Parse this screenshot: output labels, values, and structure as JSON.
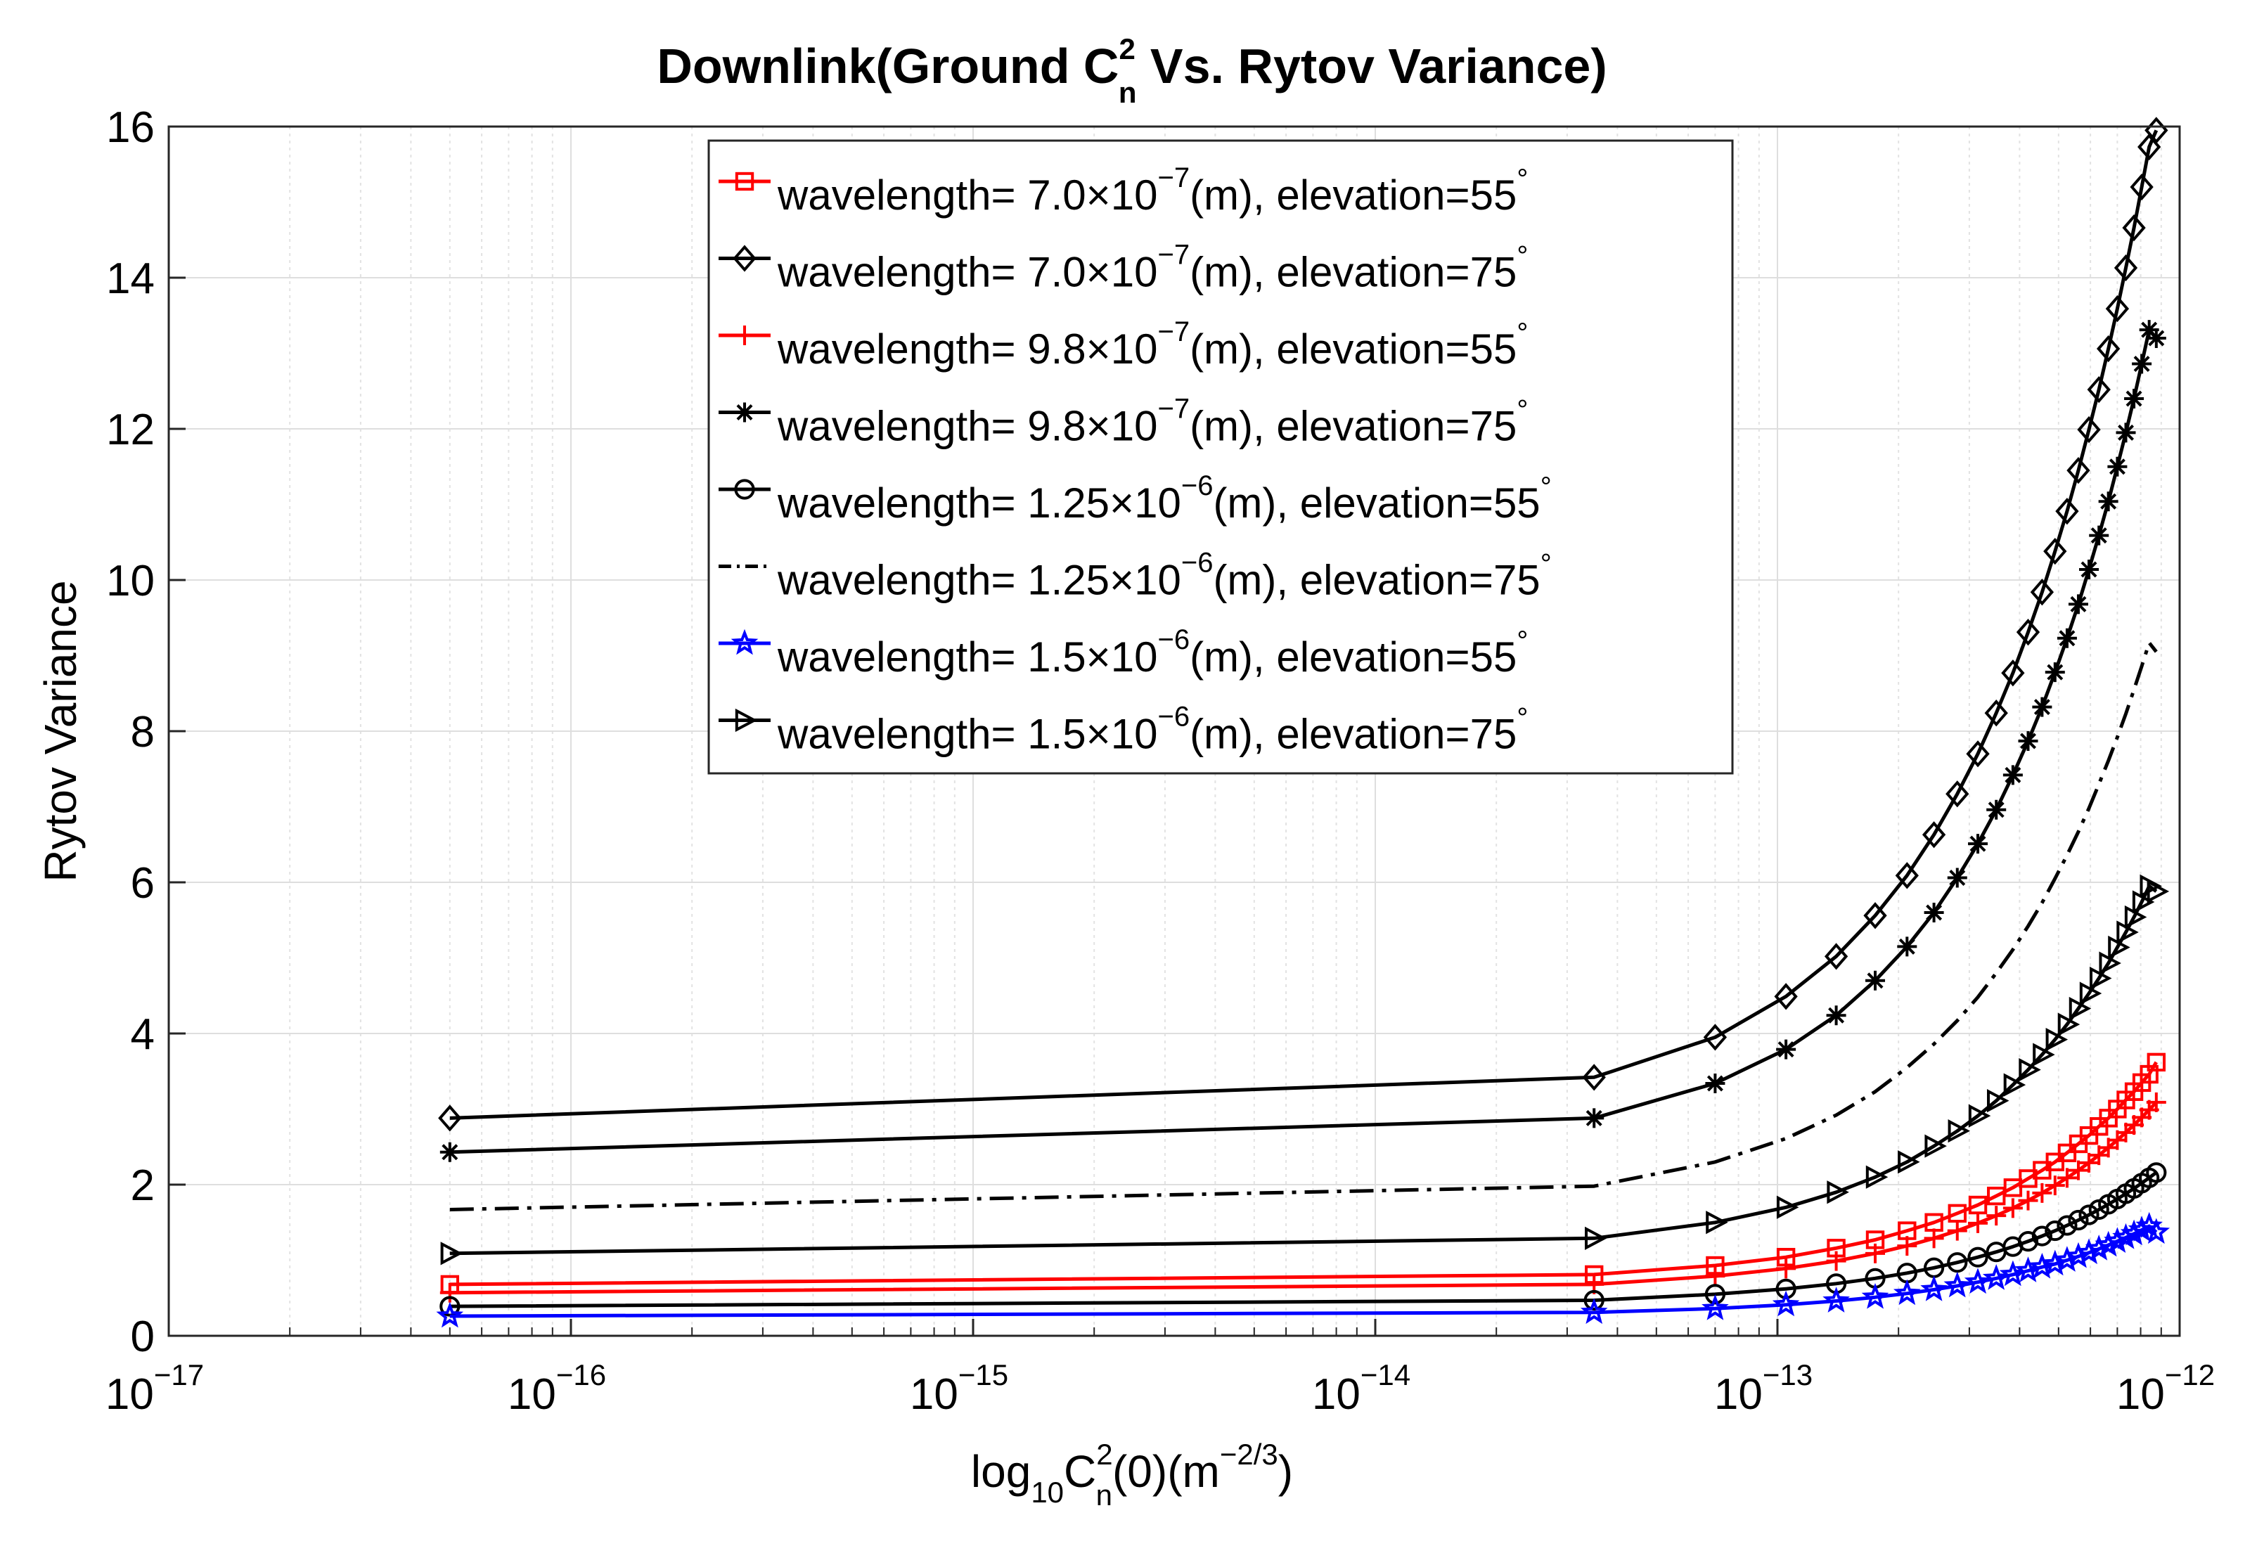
{
  "chart_data": {
    "type": "line",
    "title": {
      "pre": "Downlink(Ground C",
      "sup": "2",
      "sub": "n",
      "post": " Vs. Rytov Variance)"
    },
    "ylabel": "Rytov Variance",
    "xlabel": {
      "p1": "log",
      "s1": "10",
      "p2": "C",
      "sup2": "2",
      "sub2": "n",
      "p3": "(0)(m",
      "sup3": "−2/3",
      "p4": ")"
    },
    "x_scale": "log",
    "xlim": [
      1e-17,
      1e-12
    ],
    "ylim": [
      0,
      16
    ],
    "x_ticks": [
      {
        "base": "10",
        "exp": "−17"
      },
      {
        "base": "10",
        "exp": "−16"
      },
      {
        "base": "10",
        "exp": "−15"
      },
      {
        "base": "10",
        "exp": "−14"
      },
      {
        "base": "10",
        "exp": "−13"
      },
      {
        "base": "10",
        "exp": "−12"
      }
    ],
    "y_ticks": [
      "0",
      "2",
      "4",
      "6",
      "8",
      "10",
      "12",
      "14",
      "16"
    ],
    "grid": true,
    "legend_position": "top-center",
    "x": [
      5e-17,
      3.5e-14,
      7e-14,
      1.05e-13,
      1.4e-13,
      1.75e-13,
      2.1e-13,
      2.45e-13,
      2.8e-13,
      3.15e-13,
      3.5e-13,
      3.85e-13,
      4.2e-13,
      4.55e-13,
      4.9e-13,
      5.25e-13,
      5.6e-13,
      5.95e-13,
      6.3e-13,
      6.65e-13,
      7e-13,
      7.35e-13,
      7.7e-13,
      8.05e-13,
      8.4e-13,
      8.75e-13
    ],
    "series": [
      {
        "name": {
          "pre": "wavelength= 7.0",
          "times": "×",
          "ten": "10",
          "exp": "−7",
          "mid": "(m), elevation=",
          "elev": "55",
          "deg": "°"
        },
        "color": "#ff0000",
        "marker": "square",
        "dash": "",
        "values": [
          0.68,
          0.81,
          0.93,
          1.04,
          1.16,
          1.27,
          1.39,
          1.5,
          1.62,
          1.73,
          1.85,
          1.96,
          2.08,
          2.19,
          2.3,
          2.42,
          2.54,
          2.65,
          2.77,
          2.88,
          3.0,
          3.12,
          3.23,
          3.35,
          3.46,
          3.62
        ]
      },
      {
        "name": {
          "pre": "wavelength= 7.0",
          "times": "×",
          "ten": "10",
          "exp": "−7",
          "mid": "(m), elevation=",
          "elev": "75",
          "deg": "°"
        },
        "color": "#000000",
        "marker": "diamond",
        "dash": "",
        "values": [
          2.88,
          3.42,
          3.95,
          4.49,
          5.02,
          5.56,
          6.09,
          6.63,
          7.17,
          7.7,
          8.24,
          8.77,
          9.31,
          9.84,
          10.38,
          10.91,
          11.45,
          11.99,
          12.52,
          13.06,
          13.59,
          14.13,
          14.66,
          15.2,
          15.73,
          15.95
        ]
      },
      {
        "name": {
          "pre": "wavelength= 9.8",
          "times": "×",
          "ten": "10",
          "exp": "−7",
          "mid": "(m), elevation=",
          "elev": "55",
          "deg": "°"
        },
        "color": "#ff0000",
        "marker": "plus",
        "dash": "",
        "values": [
          0.57,
          0.68,
          0.79,
          0.89,
          0.99,
          1.09,
          1.19,
          1.29,
          1.39,
          1.49,
          1.59,
          1.69,
          1.79,
          1.89,
          1.99,
          2.09,
          2.19,
          2.29,
          2.39,
          2.49,
          2.59,
          2.69,
          2.79,
          2.89,
          2.99,
          3.09
        ]
      },
      {
        "name": {
          "pre": "wavelength= 9.8",
          "times": "×",
          "ten": "10",
          "exp": "−7",
          "mid": "(m), elevation=",
          "elev": "75",
          "deg": "°"
        },
        "color": "#000000",
        "marker": "asterisk",
        "dash": "",
        "values": [
          2.43,
          2.88,
          3.34,
          3.79,
          4.24,
          4.7,
          5.15,
          5.6,
          6.06,
          6.51,
          6.96,
          7.42,
          7.87,
          8.32,
          8.78,
          9.23,
          9.68,
          10.14,
          10.59,
          11.04,
          11.5,
          11.95,
          12.4,
          12.86,
          13.31,
          13.2
        ]
      },
      {
        "name": {
          "pre": "wavelength= 1.25",
          "times": "×",
          "ten": "10",
          "exp": "−6",
          "mid": "(m), elevation=",
          "elev": "55",
          "deg": "°"
        },
        "color": "#000000",
        "marker": "circle",
        "dash": "",
        "values": [
          0.39,
          0.47,
          0.55,
          0.62,
          0.69,
          0.76,
          0.83,
          0.9,
          0.97,
          1.04,
          1.11,
          1.18,
          1.25,
          1.32,
          1.39,
          1.46,
          1.53,
          1.6,
          1.67,
          1.74,
          1.81,
          1.88,
          1.95,
          2.02,
          2.09,
          2.16
        ]
      },
      {
        "name": {
          "pre": "wavelength= 1.25",
          "times": "×",
          "ten": "10",
          "exp": "−6",
          "mid": "(m), elevation=",
          "elev": "75",
          "deg": "°"
        },
        "color": "#000000",
        "marker": "none",
        "dash": "34 12 6 12",
        "values": [
          1.67,
          1.98,
          2.3,
          2.61,
          2.92,
          3.23,
          3.55,
          3.86,
          4.17,
          4.48,
          4.8,
          5.11,
          5.42,
          5.73,
          6.05,
          6.36,
          6.67,
          6.98,
          7.3,
          7.61,
          7.92,
          8.23,
          8.55,
          8.86,
          9.17,
          9.05
        ]
      },
      {
        "name": {
          "pre": "wavelength= 1.5",
          "times": "×",
          "ten": "10",
          "exp": "−6",
          "mid": "(m), elevation=",
          "elev": "55",
          "deg": "°"
        },
        "color": "#0000ff",
        "marker": "pentagram",
        "dash": "",
        "values": [
          0.26,
          0.31,
          0.36,
          0.41,
          0.46,
          0.51,
          0.56,
          0.61,
          0.66,
          0.71,
          0.76,
          0.81,
          0.86,
          0.91,
          0.95,
          1.0,
          1.05,
          1.1,
          1.15,
          1.2,
          1.25,
          1.3,
          1.35,
          1.4,
          1.45,
          1.37
        ]
      },
      {
        "name": {
          "pre": "wavelength= 1.5",
          "times": "×",
          "ten": "10",
          "exp": "−6",
          "mid": "(m), elevation=",
          "elev": "75",
          "deg": "°"
        },
        "color": "#000000",
        "marker": "triangle-right",
        "dash": "",
        "values": [
          1.09,
          1.29,
          1.5,
          1.7,
          1.9,
          2.1,
          2.3,
          2.51,
          2.71,
          2.91,
          3.11,
          3.32,
          3.52,
          3.72,
          3.92,
          4.12,
          4.33,
          4.53,
          4.73,
          4.93,
          5.14,
          5.34,
          5.54,
          5.74,
          5.95,
          5.88
        ]
      }
    ]
  }
}
